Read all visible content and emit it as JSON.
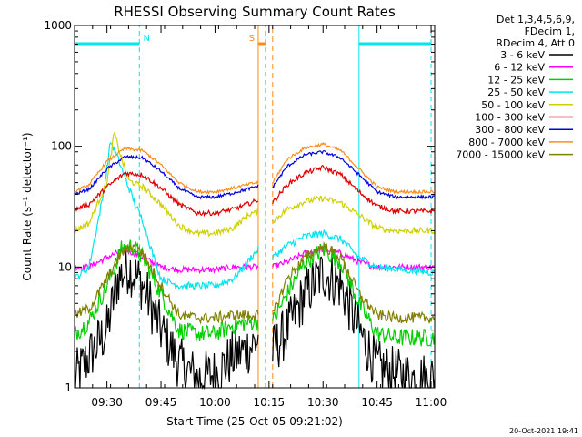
{
  "chart_data": {
    "type": "line",
    "title": "RHESSI Observing Summary Count Rates",
    "xlabel": "Start Time (25-Oct-05 09:21:02)",
    "ylabel": "Count Rate (s⁻¹ detector⁻¹)",
    "y_scale": "log",
    "ylim": [
      1,
      1000
    ],
    "y_ticks": [
      {
        "value": 1,
        "label": "1"
      },
      {
        "value": 10,
        "label": "10"
      },
      {
        "value": 100,
        "label": "100"
      },
      {
        "value": 1000,
        "label": "1000"
      }
    ],
    "xlim": [
      "09:21",
      "11:01"
    ],
    "x_ticks": [
      "09:30",
      "09:45",
      "10:00",
      "10:15",
      "10:30",
      "10:45",
      "11:00"
    ],
    "header_lines": [
      "Det 1,3,4,5,6,9,",
      "FDecim 1,",
      "RDecim 4, Att 0"
    ],
    "timestamp": "20-Oct-2021 19:41",
    "data_gap": [
      "10:12",
      "10:16"
    ],
    "flags": [
      {
        "label": "N",
        "color": "#00e5ee",
        "intervals": [
          [
            "09:21",
            "09:39"
          ],
          [
            "10:40",
            "11:00"
          ]
        ]
      },
      {
        "label": "S",
        "color": "#ff8c1a",
        "intervals": [
          [
            "10:12",
            "10:14"
          ]
        ]
      }
    ],
    "series": [
      {
        "name": "3 - 6 keV",
        "color": "#000000",
        "noise": 0.45,
        "points": [
          [
            "09:21",
            1.2
          ],
          [
            "09:25",
            1.8
          ],
          [
            "09:30",
            3.0
          ],
          [
            "09:33",
            8.0
          ],
          [
            "09:36",
            10.0
          ],
          [
            "09:40",
            7.0
          ],
          [
            "09:45",
            3.0
          ],
          [
            "09:50",
            1.6
          ],
          [
            "09:55",
            1.2
          ],
          [
            "10:00",
            1.3
          ],
          [
            "10:05",
            1.8
          ],
          [
            "10:10",
            2.2
          ],
          [
            "10:12",
            2.5
          ],
          [
            "10:16",
            2.0
          ],
          [
            "10:20",
            3.0
          ],
          [
            "10:25",
            6.0
          ],
          [
            "10:30",
            9.0
          ],
          [
            "10:35",
            7.0
          ],
          [
            "10:40",
            3.0
          ],
          [
            "10:45",
            1.5
          ],
          [
            "10:50",
            1.3
          ],
          [
            "10:55",
            1.2
          ],
          [
            "11:00",
            1.2
          ]
        ]
      },
      {
        "name": "6 - 12 keV",
        "color": "#ff00ff",
        "noise": 0.05,
        "points": [
          [
            "09:21",
            10.0
          ],
          [
            "09:25",
            10.0
          ],
          [
            "09:30",
            12.0
          ],
          [
            "09:35",
            14.0
          ],
          [
            "09:40",
            12.0
          ],
          [
            "09:45",
            10.0
          ],
          [
            "09:50",
            9.5
          ],
          [
            "10:00",
            9.5
          ],
          [
            "10:05",
            10.0
          ],
          [
            "10:10",
            10.0
          ],
          [
            "10:12",
            10.0
          ],
          [
            "10:16",
            10.0
          ],
          [
            "10:20",
            11.0
          ],
          [
            "10:25",
            13.0
          ],
          [
            "10:30",
            14.0
          ],
          [
            "10:35",
            13.0
          ],
          [
            "10:40",
            11.0
          ],
          [
            "10:45",
            10.0
          ],
          [
            "11:00",
            10.0
          ]
        ]
      },
      {
        "name": "12 - 25 keV",
        "color": "#00d000",
        "noise": 0.15,
        "points": [
          [
            "09:21",
            2.8
          ],
          [
            "09:25",
            3.5
          ],
          [
            "09:30",
            7.0
          ],
          [
            "09:34",
            14.0
          ],
          [
            "09:37",
            15.0
          ],
          [
            "09:40",
            12.0
          ],
          [
            "09:45",
            6.0
          ],
          [
            "09:50",
            3.0
          ],
          [
            "09:55",
            2.8
          ],
          [
            "10:00",
            2.8
          ],
          [
            "10:05",
            3.3
          ],
          [
            "10:10",
            3.5
          ],
          [
            "10:12",
            3.5
          ],
          [
            "10:16",
            3.5
          ],
          [
            "10:20",
            6.0
          ],
          [
            "10:25",
            11.0
          ],
          [
            "10:30",
            14.0
          ],
          [
            "10:35",
            11.0
          ],
          [
            "10:40",
            5.0
          ],
          [
            "10:45",
            2.8
          ],
          [
            "10:50",
            2.6
          ],
          [
            "11:00",
            2.6
          ]
        ]
      },
      {
        "name": "25 - 50 keV",
        "color": "#00e5ee",
        "noise": 0.06,
        "points": [
          [
            "09:21",
            8.0
          ],
          [
            "09:25",
            10.0
          ],
          [
            "09:29",
            40.0
          ],
          [
            "09:31",
            110.0
          ],
          [
            "09:33",
            80.0
          ],
          [
            "09:35",
            55.0
          ],
          [
            "09:38",
            32.0
          ],
          [
            "09:40",
            24.0
          ],
          [
            "09:43",
            12.0
          ],
          [
            "09:45",
            8.0
          ],
          [
            "09:50",
            7.0
          ],
          [
            "10:00",
            7.0
          ],
          [
            "10:05",
            8.0
          ],
          [
            "10:08",
            10.0
          ],
          [
            "10:10",
            12.0
          ],
          [
            "10:12",
            14.0
          ],
          [
            "10:16",
            12.0
          ],
          [
            "10:20",
            15.0
          ],
          [
            "10:25",
            18.0
          ],
          [
            "10:30",
            19.0
          ],
          [
            "10:35",
            17.0
          ],
          [
            "10:40",
            12.0
          ],
          [
            "10:45",
            10.0
          ],
          [
            "11:00",
            9.0
          ]
        ]
      },
      {
        "name": "50 - 100 keV",
        "color": "#d0d000",
        "noise": 0.05,
        "points": [
          [
            "09:21",
            20.0
          ],
          [
            "09:25",
            23.0
          ],
          [
            "09:30",
            50.0
          ],
          [
            "09:32",
            130.0
          ],
          [
            "09:34",
            80.0
          ],
          [
            "09:36",
            52.0
          ],
          [
            "09:40",
            46.0
          ],
          [
            "09:45",
            33.0
          ],
          [
            "09:50",
            22.0
          ],
          [
            "09:55",
            19.0
          ],
          [
            "10:00",
            19.0
          ],
          [
            "10:05",
            21.0
          ],
          [
            "10:08",
            25.0
          ],
          [
            "10:10",
            28.0
          ],
          [
            "10:12",
            28.0
          ],
          [
            "10:16",
            24.0
          ],
          [
            "10:20",
            30.0
          ],
          [
            "10:25",
            35.0
          ],
          [
            "10:30",
            37.0
          ],
          [
            "10:35",
            34.0
          ],
          [
            "10:40",
            27.0
          ],
          [
            "10:45",
            21.0
          ],
          [
            "10:50",
            20.0
          ],
          [
            "11:00",
            20.0
          ]
        ]
      },
      {
        "name": "100 - 300 keV",
        "color": "#e00000",
        "noise": 0.04,
        "points": [
          [
            "09:21",
            30.0
          ],
          [
            "09:25",
            33.0
          ],
          [
            "09:30",
            46.0
          ],
          [
            "09:35",
            60.0
          ],
          [
            "09:40",
            58.0
          ],
          [
            "09:45",
            45.0
          ],
          [
            "09:50",
            33.0
          ],
          [
            "09:55",
            28.0
          ],
          [
            "10:00",
            28.0
          ],
          [
            "10:05",
            30.0
          ],
          [
            "10:10",
            34.0
          ],
          [
            "10:12",
            36.0
          ],
          [
            "10:16",
            34.0
          ],
          [
            "10:20",
            48.0
          ],
          [
            "10:25",
            60.0
          ],
          [
            "10:30",
            67.0
          ],
          [
            "10:35",
            58.0
          ],
          [
            "10:40",
            42.0
          ],
          [
            "10:45",
            32.0
          ],
          [
            "10:50",
            29.0
          ],
          [
            "11:00",
            29.0
          ]
        ]
      },
      {
        "name": "300 - 800 keV",
        "color": "#0000e0",
        "noise": 0.025,
        "points": [
          [
            "09:21",
            40.0
          ],
          [
            "09:25",
            44.0
          ],
          [
            "09:30",
            65.0
          ],
          [
            "09:35",
            82.0
          ],
          [
            "09:40",
            80.0
          ],
          [
            "09:45",
            62.0
          ],
          [
            "09:50",
            45.0
          ],
          [
            "09:55",
            38.0
          ],
          [
            "10:00",
            38.0
          ],
          [
            "10:05",
            41.0
          ],
          [
            "10:10",
            45.0
          ],
          [
            "10:12",
            47.0
          ],
          [
            "10:16",
            46.0
          ],
          [
            "10:20",
            68.0
          ],
          [
            "10:25",
            85.0
          ],
          [
            "10:30",
            90.0
          ],
          [
            "10:35",
            80.0
          ],
          [
            "10:40",
            58.0
          ],
          [
            "10:45",
            42.0
          ],
          [
            "10:50",
            38.0
          ],
          [
            "11:00",
            38.0
          ]
        ]
      },
      {
        "name": "800 - 7000 keV",
        "color": "#ff8c1a",
        "noise": 0.025,
        "points": [
          [
            "09:21",
            42.0
          ],
          [
            "09:25",
            48.0
          ],
          [
            "09:30",
            75.0
          ],
          [
            "09:35",
            96.0
          ],
          [
            "09:40",
            92.0
          ],
          [
            "09:45",
            70.0
          ],
          [
            "09:50",
            50.0
          ],
          [
            "09:55",
            42.0
          ],
          [
            "10:00",
            42.0
          ],
          [
            "10:05",
            45.0
          ],
          [
            "10:10",
            49.0
          ],
          [
            "10:12",
            50.0
          ],
          [
            "10:16",
            50.0
          ],
          [
            "10:20",
            78.0
          ],
          [
            "10:25",
            97.0
          ],
          [
            "10:30",
            104.0
          ],
          [
            "10:35",
            92.0
          ],
          [
            "10:40",
            65.0
          ],
          [
            "10:45",
            46.0
          ],
          [
            "10:50",
            42.0
          ],
          [
            "11:00",
            42.0
          ]
        ]
      },
      {
        "name": "7000 - 15000 keV",
        "color": "#808000",
        "noise": 0.09,
        "points": [
          [
            "09:21",
            4.0
          ],
          [
            "09:25",
            4.5
          ],
          [
            "09:30",
            8.0
          ],
          [
            "09:34",
            13.0
          ],
          [
            "09:37",
            15.0
          ],
          [
            "09:40",
            13.0
          ],
          [
            "09:45",
            7.0
          ],
          [
            "09:50",
            4.0
          ],
          [
            "09:55",
            3.8
          ],
          [
            "10:00",
            3.8
          ],
          [
            "10:05",
            4.0
          ],
          [
            "10:10",
            4.0
          ],
          [
            "10:12",
            4.0
          ],
          [
            "10:16",
            4.0
          ],
          [
            "10:20",
            8.0
          ],
          [
            "10:25",
            12.0
          ],
          [
            "10:30",
            15.0
          ],
          [
            "10:35",
            12.0
          ],
          [
            "10:40",
            6.0
          ],
          [
            "10:45",
            4.0
          ],
          [
            "10:50",
            3.8
          ],
          [
            "11:00",
            3.8
          ]
        ]
      }
    ]
  }
}
